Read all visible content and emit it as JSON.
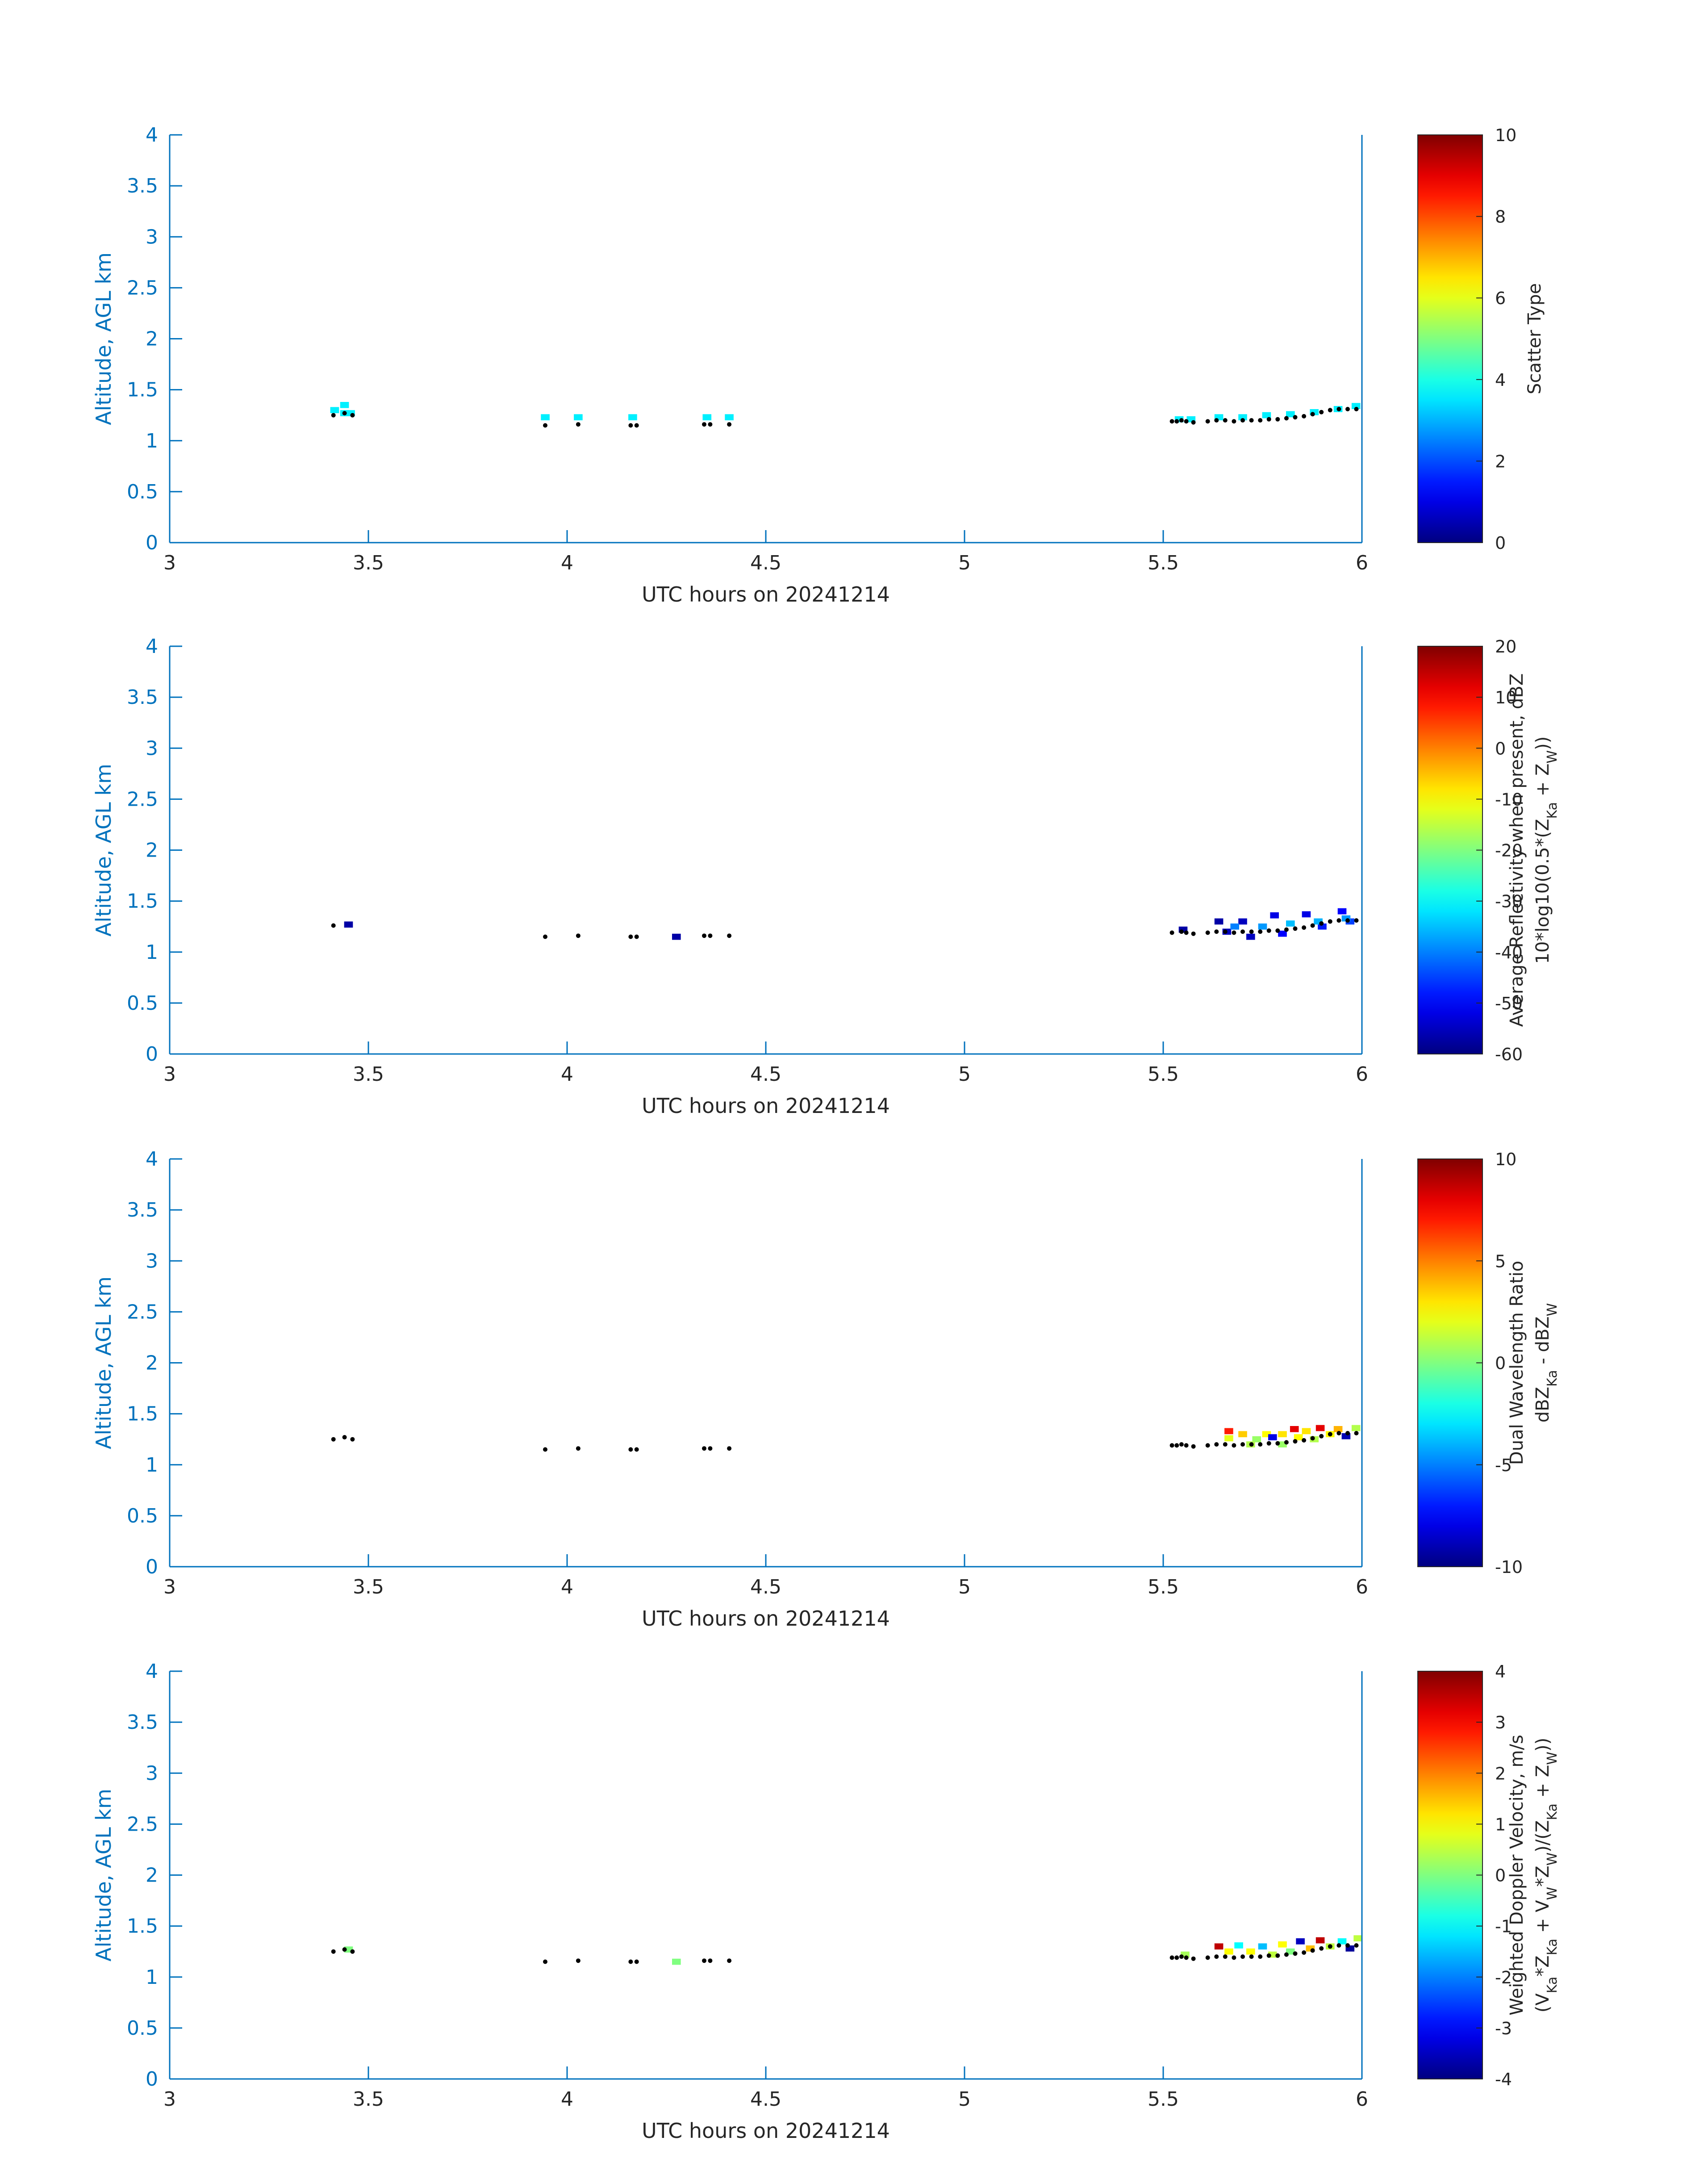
{
  "chart_data": [
    {
      "type": "heatmap",
      "xlabel": "UTC hours on 20241214",
      "ylabel": "Altitude, AGL km",
      "xlim": [
        3,
        6
      ],
      "ylim": [
        0,
        4
      ],
      "xticks": [
        "3",
        "3.5",
        "4",
        "4.5",
        "5",
        "5.5",
        "6"
      ],
      "yticks": [
        "0",
        "0.5",
        "1",
        "1.5",
        "2",
        "2.5",
        "3",
        "3.5",
        "4"
      ],
      "colorbar": {
        "label": [
          "Scatter Type"
        ],
        "clim": [
          0,
          10
        ],
        "ticks": [
          "0",
          "2",
          "4",
          "6",
          "8",
          "10"
        ]
      },
      "cells": [
        [
          3.415,
          1.3,
          3.6
        ],
        [
          3.44,
          1.35,
          3.6
        ],
        [
          3.44,
          1.27,
          3.6
        ],
        [
          3.455,
          1.27,
          3.6
        ],
        [
          3.945,
          1.23,
          3.6
        ],
        [
          4.028,
          1.23,
          3.6
        ],
        [
          4.165,
          1.23,
          3.6
        ],
        [
          4.352,
          1.23,
          3.6
        ],
        [
          4.408,
          1.23,
          3.6
        ],
        [
          5.54,
          1.21,
          3.6
        ],
        [
          5.57,
          1.21,
          3.6
        ],
        [
          5.64,
          1.23,
          3.6
        ],
        [
          5.7,
          1.23,
          3.6
        ],
        [
          5.76,
          1.25,
          3.6
        ],
        [
          5.82,
          1.26,
          3.6
        ],
        [
          5.88,
          1.28,
          3.6
        ],
        [
          5.94,
          1.31,
          3.6
        ],
        [
          5.985,
          1.34,
          3.6
        ]
      ],
      "dots": {
        "x": [
          3.412,
          3.44,
          3.46,
          3.945,
          4.028,
          4.16,
          4.175,
          4.345,
          4.36,
          4.408,
          5.522,
          5.534,
          5.546,
          5.558,
          5.576,
          5.612,
          5.634,
          5.656,
          5.678,
          5.7,
          5.722,
          5.744,
          5.766,
          5.788,
          5.81,
          5.832,
          5.854,
          5.876,
          5.898,
          5.92,
          5.942,
          5.964,
          5.986
        ],
        "y": [
          1.25,
          1.27,
          1.25,
          1.15,
          1.16,
          1.15,
          1.15,
          1.16,
          1.16,
          1.16,
          1.19,
          1.19,
          1.2,
          1.19,
          1.18,
          1.19,
          1.2,
          1.2,
          1.19,
          1.2,
          1.2,
          1.2,
          1.21,
          1.21,
          1.22,
          1.23,
          1.24,
          1.26,
          1.28,
          1.3,
          1.31,
          1.31,
          1.31
        ]
      }
    },
    {
      "type": "heatmap",
      "xlabel": "UTC hours on 20241214",
      "ylabel": "Altitude, AGL km",
      "xlim": [
        3,
        6
      ],
      "ylim": [
        0,
        4
      ],
      "xticks": [
        "3",
        "3.5",
        "4",
        "4.5",
        "5",
        "5.5",
        "6"
      ],
      "yticks": [
        "0",
        "0.5",
        "1",
        "1.5",
        "2",
        "2.5",
        "3",
        "3.5",
        "4"
      ],
      "colorbar": {
        "label": [
          "Average Reflectivity when present, dBZ",
          "10*log10(0.5*(Z_Ka + Z_W))"
        ],
        "clim": [
          -60,
          20
        ],
        "ticks": [
          "-60",
          "-50",
          "-40",
          "-30",
          "-20",
          "-10",
          "0",
          "10",
          "20"
        ]
      },
      "cells": [
        [
          3.45,
          1.27,
          -57
        ],
        [
          4.275,
          1.15,
          -57
        ],
        [
          5.55,
          1.22,
          -57
        ],
        [
          5.64,
          1.3,
          -57
        ],
        [
          5.7,
          1.3,
          -55
        ],
        [
          5.78,
          1.36,
          -52
        ],
        [
          5.86,
          1.37,
          -52
        ],
        [
          5.95,
          1.4,
          -50
        ],
        [
          5.66,
          1.2,
          -55
        ],
        [
          5.72,
          1.15,
          -55
        ],
        [
          5.8,
          1.18,
          -50
        ],
        [
          5.9,
          1.25,
          -48
        ],
        [
          5.97,
          1.3,
          -45
        ],
        [
          5.68,
          1.25,
          -40
        ],
        [
          5.75,
          1.25,
          -38
        ],
        [
          5.82,
          1.28,
          -35
        ],
        [
          5.89,
          1.3,
          -36
        ],
        [
          5.96,
          1.33,
          -38
        ]
      ],
      "dots": {
        "x": [
          3.412,
          3.945,
          4.028,
          4.16,
          4.175,
          4.345,
          4.36,
          4.408,
          5.522,
          5.546,
          5.558,
          5.576,
          5.612,
          5.634,
          5.656,
          5.678,
          5.7,
          5.722,
          5.744,
          5.766,
          5.788,
          5.81,
          5.832,
          5.854,
          5.876,
          5.898,
          5.92,
          5.942,
          5.964,
          5.986
        ],
        "y": [
          1.26,
          1.15,
          1.16,
          1.15,
          1.15,
          1.16,
          1.16,
          1.16,
          1.19,
          1.2,
          1.19,
          1.18,
          1.19,
          1.2,
          1.2,
          1.19,
          1.2,
          1.2,
          1.2,
          1.21,
          1.21,
          1.22,
          1.23,
          1.24,
          1.26,
          1.28,
          1.3,
          1.31,
          1.31,
          1.31
        ]
      }
    },
    {
      "type": "heatmap",
      "xlabel": "UTC hours on 20241214",
      "ylabel": "Altitude, AGL km",
      "xlim": [
        3,
        6
      ],
      "ylim": [
        0,
        4
      ],
      "xticks": [
        "3",
        "3.5",
        "4",
        "4.5",
        "5",
        "5.5",
        "6"
      ],
      "yticks": [
        "0",
        "0.5",
        "1",
        "1.5",
        "2",
        "2.5",
        "3",
        "3.5",
        "4"
      ],
      "colorbar": {
        "label": [
          "Dual Wavelength Ratio",
          "dBZ_Ka - dBZ_W"
        ],
        "clim": [
          -10,
          10
        ],
        "ticks": [
          "-10",
          "-5",
          "0",
          "5",
          "10"
        ]
      },
      "cells": [
        [
          5.665,
          1.33,
          7
        ],
        [
          5.665,
          1.26,
          2
        ],
        [
          5.7,
          1.3,
          3.5
        ],
        [
          5.735,
          1.25,
          0.5
        ],
        [
          5.76,
          1.3,
          2.5
        ],
        [
          5.775,
          1.27,
          -8
        ],
        [
          5.8,
          1.3,
          3
        ],
        [
          5.83,
          1.35,
          8
        ],
        [
          5.84,
          1.27,
          2.5
        ],
        [
          5.86,
          1.33,
          3
        ],
        [
          5.88,
          1.25,
          1
        ],
        [
          5.895,
          1.36,
          8
        ],
        [
          5.92,
          1.3,
          2.5
        ],
        [
          5.94,
          1.35,
          4
        ],
        [
          5.96,
          1.28,
          -9
        ],
        [
          5.985,
          1.36,
          1
        ],
        [
          5.72,
          1.2,
          1
        ],
        [
          5.8,
          1.2,
          0.5
        ]
      ],
      "dots": {
        "x": [
          3.412,
          3.44,
          3.46,
          3.945,
          4.028,
          4.16,
          4.175,
          4.345,
          4.36,
          4.408,
          5.522,
          5.534,
          5.546,
          5.558,
          5.576,
          5.612,
          5.634,
          5.656,
          5.678,
          5.7,
          5.722,
          5.744,
          5.766,
          5.788,
          5.81,
          5.832,
          5.854,
          5.876,
          5.898,
          5.92,
          5.942,
          5.964,
          5.986
        ],
        "y": [
          1.25,
          1.27,
          1.25,
          1.15,
          1.16,
          1.15,
          1.15,
          1.16,
          1.16,
          1.16,
          1.19,
          1.19,
          1.2,
          1.19,
          1.18,
          1.19,
          1.2,
          1.2,
          1.19,
          1.2,
          1.2,
          1.2,
          1.21,
          1.21,
          1.22,
          1.23,
          1.24,
          1.26,
          1.28,
          1.3,
          1.31,
          1.31,
          1.31
        ]
      }
    },
    {
      "type": "heatmap",
      "xlabel": "UTC hours on 20241214",
      "ylabel": "Altitude, AGL km",
      "xlim": [
        3,
        6
      ],
      "ylim": [
        0,
        4
      ],
      "xticks": [
        "3",
        "3.5",
        "4",
        "4.5",
        "5",
        "5.5",
        "6"
      ],
      "yticks": [
        "0",
        "0.5",
        "1",
        "1.5",
        "2",
        "2.5",
        "3",
        "3.5",
        "4"
      ],
      "colorbar": {
        "label": [
          "Weighted Doppler Velocity, m/s",
          "(V_Ka*Z_Ka + V_W*Z_W)/(Z_Ka + Z_W))"
        ],
        "clim": [
          -4,
          4
        ],
        "ticks": [
          "-4",
          "-3",
          "-2",
          "-1",
          "0",
          "1",
          "2",
          "3",
          "4"
        ]
      },
      "cells": [
        [
          3.45,
          1.27,
          0
        ],
        [
          4.275,
          1.15,
          0
        ],
        [
          5.555,
          1.22,
          0.3
        ],
        [
          5.64,
          1.3,
          3.5
        ],
        [
          5.665,
          1.25,
          1
        ],
        [
          5.69,
          1.31,
          -1
        ],
        [
          5.72,
          1.25,
          1
        ],
        [
          5.75,
          1.3,
          -1.5
        ],
        [
          5.775,
          1.22,
          0.5
        ],
        [
          5.8,
          1.32,
          1
        ],
        [
          5.82,
          1.25,
          0
        ],
        [
          5.845,
          1.35,
          -3.5
        ],
        [
          5.87,
          1.28,
          1.5
        ],
        [
          5.895,
          1.36,
          3.5
        ],
        [
          5.92,
          1.3,
          0.5
        ],
        [
          5.95,
          1.35,
          -1
        ],
        [
          5.97,
          1.28,
          -3.8
        ],
        [
          5.99,
          1.38,
          0.5
        ]
      ],
      "dots": {
        "x": [
          3.412,
          3.44,
          3.46,
          3.945,
          4.028,
          4.16,
          4.175,
          4.345,
          4.36,
          4.408,
          5.522,
          5.534,
          5.546,
          5.558,
          5.576,
          5.612,
          5.634,
          5.656,
          5.678,
          5.7,
          5.722,
          5.744,
          5.766,
          5.788,
          5.81,
          5.832,
          5.854,
          5.876,
          5.898,
          5.92,
          5.942,
          5.964,
          5.986
        ],
        "y": [
          1.25,
          1.27,
          1.25,
          1.15,
          1.16,
          1.15,
          1.15,
          1.16,
          1.16,
          1.16,
          1.19,
          1.19,
          1.2,
          1.19,
          1.18,
          1.19,
          1.2,
          1.2,
          1.19,
          1.2,
          1.2,
          1.2,
          1.21,
          1.21,
          1.22,
          1.23,
          1.24,
          1.26,
          1.28,
          1.3,
          1.31,
          1.31,
          1.31
        ]
      }
    }
  ],
  "colors": {
    "axis": "#0072BD",
    "dots": "#000000"
  },
  "colormap": "jet"
}
